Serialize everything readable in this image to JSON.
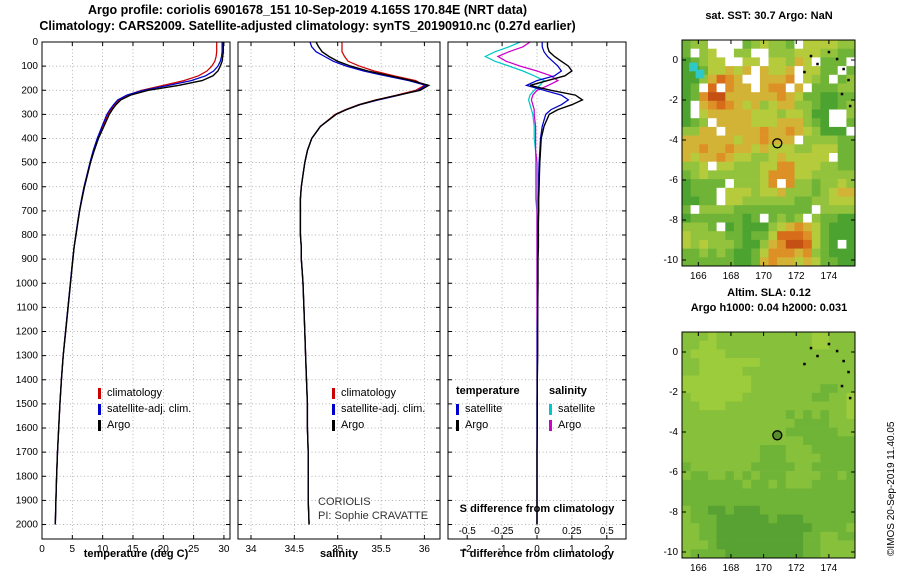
{
  "header": {
    "title_line1": "Argo profile: coriolis 6901678_151 10-Sep-2019 4.165S 170.84E (NRT data)",
    "title_line2": "Climatology: CARS2009. Satellite-adjusted climatology: synTS_20190910.nc (0.27d earlier)"
  },
  "annotations": {
    "coriolis": "CORIOLIS",
    "pi": "PI: Sophie CRAVATTE",
    "attribution": "©IMOS 20-Sep-2019 11.40.05"
  },
  "chart_data": [
    {
      "type": "line",
      "title": "temperature profile vs depth",
      "xlabel": "temperature (deg C)",
      "ylabel": "depth (m)",
      "xlim": [
        0,
        31
      ],
      "ylim": [
        0,
        2060
      ],
      "xticks": [
        0,
        5,
        10,
        15,
        20,
        25,
        30
      ],
      "yticks": [
        0,
        100,
        200,
        300,
        400,
        500,
        600,
        700,
        800,
        900,
        1000,
        1100,
        1200,
        1300,
        1400,
        1500,
        1600,
        1700,
        1800,
        1900,
        2000
      ],
      "depths": [
        0,
        20,
        40,
        60,
        80,
        100,
        120,
        140,
        160,
        180,
        200,
        220,
        240,
        260,
        280,
        300,
        350,
        400,
        450,
        500,
        550,
        600,
        650,
        700,
        750,
        800,
        850,
        900,
        950,
        1000,
        1100,
        1200,
        1300,
        1400,
        1500,
        1600,
        1700,
        1800,
        1900,
        2000
      ],
      "series": [
        {
          "name": "climatology",
          "color": "#cc0000",
          "values": [
            28.8,
            28.8,
            28.8,
            28.7,
            28.5,
            28.0,
            27.2,
            25.8,
            23.4,
            20.0,
            16.4,
            14.1,
            12.7,
            12.0,
            11.4,
            10.9,
            10.0,
            9.2,
            8.5,
            7.95,
            7.45,
            6.95,
            6.55,
            6.18,
            5.88,
            5.58,
            5.3,
            5.08,
            4.88,
            4.68,
            4.28,
            3.88,
            3.5,
            3.2,
            2.95,
            2.75,
            2.55,
            2.4,
            2.3,
            2.2
          ]
        },
        {
          "name": "satellite-adj. clim.",
          "color": "#0000cc",
          "values": [
            29.7,
            29.7,
            29.7,
            29.6,
            29.4,
            29.0,
            28.3,
            27.0,
            24.6,
            20.9,
            16.7,
            14.0,
            12.5,
            11.8,
            11.2,
            10.7,
            9.9,
            9.1,
            8.45,
            7.9,
            7.42,
            6.93,
            6.53,
            6.16,
            5.86,
            5.57,
            5.29,
            5.07,
            4.87,
            4.67,
            4.27,
            3.87,
            3.5,
            3.2,
            2.95,
            2.75,
            2.55,
            2.4,
            2.3,
            2.2
          ]
        },
        {
          "name": "Argo",
          "color": "#000000",
          "values": [
            29.9,
            29.9,
            29.9,
            29.8,
            29.7,
            29.4,
            29.0,
            28.2,
            26.4,
            22.5,
            17.5,
            14.6,
            13.0,
            12.2,
            11.6,
            11.1,
            10.2,
            9.3,
            8.6,
            8.0,
            7.5,
            7.0,
            6.6,
            6.2,
            5.9,
            5.6,
            5.3,
            5.1,
            4.9,
            4.7,
            4.3,
            3.9,
            3.5,
            3.2,
            2.95,
            2.75,
            2.55,
            2.4,
            2.3,
            2.2
          ]
        }
      ]
    },
    {
      "type": "line",
      "title": "salinity profile vs depth",
      "xlabel": "salinity",
      "ylabel": "depth (m)",
      "xlim": [
        33.85,
        36.18
      ],
      "ylim": [
        0,
        2060
      ],
      "xticks": [
        34,
        34.5,
        35,
        35.5,
        36
      ],
      "depths": [
        0,
        20,
        40,
        60,
        80,
        100,
        120,
        140,
        160,
        180,
        200,
        220,
        240,
        260,
        280,
        300,
        350,
        400,
        450,
        500,
        550,
        600,
        650,
        700,
        750,
        800,
        850,
        900,
        950,
        1000,
        1100,
        1200,
        1300,
        1400,
        1500,
        1600,
        1700,
        1800,
        1900,
        2000
      ],
      "series": [
        {
          "name": "climatology",
          "color": "#cc0000",
          "values": [
            35.05,
            35.05,
            35.05,
            35.08,
            35.12,
            35.25,
            35.42,
            35.65,
            35.9,
            36.0,
            35.9,
            35.68,
            35.44,
            35.24,
            35.09,
            34.97,
            34.8,
            34.7,
            34.65,
            34.62,
            34.6,
            34.58,
            34.57,
            34.57,
            34.57,
            34.57,
            34.58,
            34.58,
            34.59,
            34.6,
            34.61,
            34.62,
            34.63,
            34.64,
            34.65,
            34.65,
            34.66,
            34.66,
            34.66,
            34.67
          ]
        },
        {
          "name": "satellite-adj. clim.",
          "color": "#0000cc",
          "values": [
            34.68,
            34.7,
            34.75,
            34.85,
            34.95,
            35.1,
            35.3,
            35.55,
            35.82,
            36.02,
            35.93,
            35.71,
            35.47,
            35.26,
            35.1,
            34.98,
            34.8,
            34.7,
            34.65,
            34.62,
            34.6,
            34.58,
            34.57,
            34.57,
            34.57,
            34.57,
            34.58,
            34.58,
            34.59,
            34.6,
            34.61,
            34.62,
            34.63,
            34.64,
            34.65,
            34.65,
            34.66,
            34.66,
            34.66,
            34.67
          ]
        },
        {
          "name": "Argo",
          "color": "#000000",
          "values": [
            34.75,
            34.78,
            34.82,
            34.9,
            35.0,
            35.15,
            35.35,
            35.6,
            35.85,
            36.05,
            35.95,
            35.7,
            35.45,
            35.25,
            35.1,
            34.98,
            34.8,
            34.7,
            34.65,
            34.62,
            34.6,
            34.58,
            34.57,
            34.57,
            34.57,
            34.57,
            34.58,
            34.58,
            34.59,
            34.6,
            34.61,
            34.62,
            34.63,
            34.64,
            34.65,
            34.65,
            34.66,
            34.66,
            34.66,
            34.67
          ]
        }
      ]
    },
    {
      "type": "line",
      "title": "difference from climatology vs depth",
      "xlabel": "T difference from climatology",
      "ylabel": "depth (m)",
      "xlim": [
        -2.55,
        2.55
      ],
      "xticks": [
        -2,
        -1,
        0,
        1,
        2
      ],
      "s_axis": {
        "label": "S difference from climatology",
        "ticks": [
          -0.5,
          -0.25,
          0,
          0.25,
          0.5
        ],
        "range": [
          -0.5,
          0.5
        ],
        "maps_to": [
          -2,
          2
        ]
      },
      "depths": [
        0,
        20,
        40,
        60,
        80,
        100,
        120,
        140,
        160,
        180,
        200,
        220,
        240,
        260,
        280,
        300,
        350,
        400,
        450,
        500,
        550,
        600,
        650,
        700,
        750,
        800,
        850,
        900,
        950,
        1000,
        1100,
        1200,
        1300,
        1400,
        1500,
        1600,
        1700,
        1800,
        1900,
        2000
      ],
      "series": [
        {
          "name": "S satellite",
          "color": "#00c8c8",
          "axis": "s",
          "values": [
            -0.12,
            -0.2,
            -0.3,
            -0.37,
            -0.3,
            -0.2,
            -0.1,
            -0.02,
            0.05,
            0.02,
            -0.02,
            -0.05,
            -0.06,
            -0.05,
            -0.04,
            -0.03,
            -0.02,
            -0.02,
            -0.01,
            -0.01,
            -0.01,
            -0.01,
            -0.01,
            0.0,
            0.0,
            0.0,
            0.0,
            0.0,
            0.0,
            0.0,
            0.0,
            0.0,
            0.0,
            0.0,
            0.0,
            0.0,
            0.0,
            0.0,
            0.0,
            0.0
          ]
        },
        {
          "name": "S Argo",
          "color": "#cc00cc",
          "axis": "s",
          "values": [
            -0.05,
            -0.1,
            -0.2,
            -0.28,
            -0.22,
            -0.12,
            0.0,
            0.1,
            0.15,
            0.08,
            0.0,
            -0.03,
            -0.04,
            -0.03,
            -0.02,
            -0.02,
            -0.01,
            -0.01,
            -0.01,
            0.0,
            0.0,
            0.0,
            0.0,
            0.0,
            0.0,
            0.0,
            0.0,
            0.0,
            0.0,
            0.0,
            0.0,
            0.0,
            0.0,
            0.0,
            0.0,
            0.0,
            0.0,
            0.0,
            0.0,
            0.0
          ]
        },
        {
          "name": "T satellite",
          "color": "#0000cc",
          "axis": "t",
          "values": [
            0.15,
            0.15,
            0.2,
            0.3,
            0.45,
            0.6,
            0.7,
            0.5,
            0.0,
            -0.3,
            0.2,
            0.7,
            0.9,
            0.7,
            0.4,
            0.25,
            0.15,
            0.1,
            0.08,
            0.06,
            0.05,
            0.05,
            0.04,
            0.04,
            0.03,
            0.03,
            0.03,
            0.02,
            0.02,
            0.02,
            0.02,
            0.01,
            0.01,
            0.01,
            0.0,
            0.0,
            0.0,
            0.0,
            0.0,
            0.0
          ]
        },
        {
          "name": "T Argo",
          "color": "#000000",
          "axis": "t",
          "values": [
            0.3,
            0.3,
            0.35,
            0.5,
            0.7,
            0.9,
            1.0,
            0.8,
            0.3,
            -0.2,
            0.4,
            1.1,
            1.3,
            1.0,
            0.6,
            0.35,
            0.2,
            0.12,
            0.1,
            0.08,
            0.07,
            0.06,
            0.05,
            0.05,
            0.04,
            0.04,
            0.04,
            0.03,
            0.03,
            0.03,
            0.02,
            0.02,
            0.02,
            0.01,
            0.01,
            0.01,
            0.0,
            0.0,
            0.0,
            0.0
          ]
        }
      ],
      "legend": {
        "col1_header": "temperature",
        "col2_header": "salinity",
        "col1": [
          {
            "label": "satellite",
            "color": "#0000cc"
          },
          {
            "label": "Argo",
            "color": "#000000"
          }
        ],
        "col2": [
          {
            "label": "satellite",
            "color": "#00c8c8"
          },
          {
            "label": "Argo",
            "color": "#cc00cc"
          }
        ]
      }
    }
  ],
  "maps": {
    "axis": {
      "xlim": [
        165,
        175.6
      ],
      "ylim": [
        1,
        -10.3
      ],
      "xticks": [
        166,
        168,
        170,
        172,
        174
      ],
      "yticks": [
        0,
        -2,
        -4,
        -6,
        -8,
        -10
      ]
    },
    "float_position": {
      "lon": 170.84,
      "lat": -4.165
    },
    "islands": [
      [
        172.9,
        0.2
      ],
      [
        173.3,
        -0.2
      ],
      [
        174.0,
        0.4
      ],
      [
        174.5,
        0.05
      ],
      [
        174.9,
        -0.45
      ],
      [
        175.2,
        -1.0
      ],
      [
        174.8,
        -1.7
      ],
      [
        175.3,
        -2.3
      ],
      [
        172.5,
        -0.6
      ]
    ],
    "sst": {
      "title": "sat. SST: 30.7 Argo: NaN",
      "cyan_cells": [
        [
          165.7,
          -0.35
        ],
        [
          166.1,
          -0.7
        ]
      ]
    },
    "sla": {
      "title_line1": "Altim. SLA: 0.12",
      "title_line2": "Argo h1000: 0.04 h2000: 0.031"
    }
  }
}
